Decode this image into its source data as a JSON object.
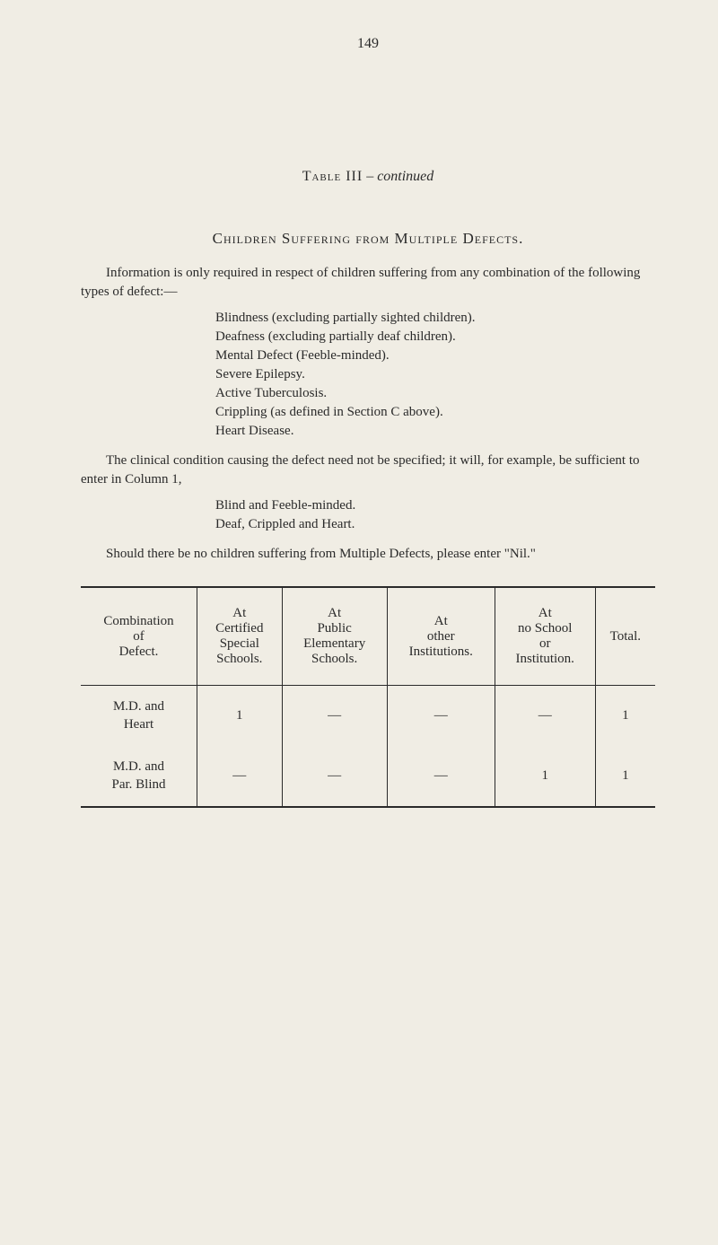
{
  "page_number": "149",
  "table_label": "Table III",
  "table_continued": "continued",
  "section_heading": "Children Suffering from Multiple Defects.",
  "intro_para": "Information is only required in respect of children suffering from any combination of the following types of defect:—",
  "defect_list": [
    "Blindness (excluding partially sighted children).",
    "Deafness (excluding partially deaf children).",
    "Mental Defect (Feeble-minded).",
    "Severe Epilepsy.",
    "Active Tuberculosis.",
    "Crippling (as defined in Section C above).",
    "Heart Disease."
  ],
  "clinical_para": "The clinical condition causing the defect need not be specified; it will, for example, be sufficient to enter in Column 1,",
  "example_list": [
    "Blind and Feeble-minded.",
    "Deaf, Crippled and Heart."
  ],
  "nil_para": "Should there be no children suffering from Multiple Defects, please enter \"Nil.\"",
  "table": {
    "columns": [
      "Combination\nof\nDefect.",
      "At\nCertified\nSpecial\nSchools.",
      "At\nPublic\nElementary\nSchools.",
      "At\nother\nInstitutions.",
      "At\nno School\nor\nInstitution.",
      "Total."
    ],
    "rows": [
      {
        "label_1": "M.D. and",
        "label_2": "Heart",
        "cells": [
          "1",
          "—",
          "—",
          "—",
          "1"
        ]
      },
      {
        "label_1": "M.D. and",
        "label_2": "Par. Blind",
        "cells": [
          "—",
          "—",
          "—",
          "1",
          "1"
        ]
      }
    ]
  },
  "colors": {
    "background": "#f0ede4",
    "text": "#2a2a2a",
    "rule": "#2a2a2a"
  }
}
